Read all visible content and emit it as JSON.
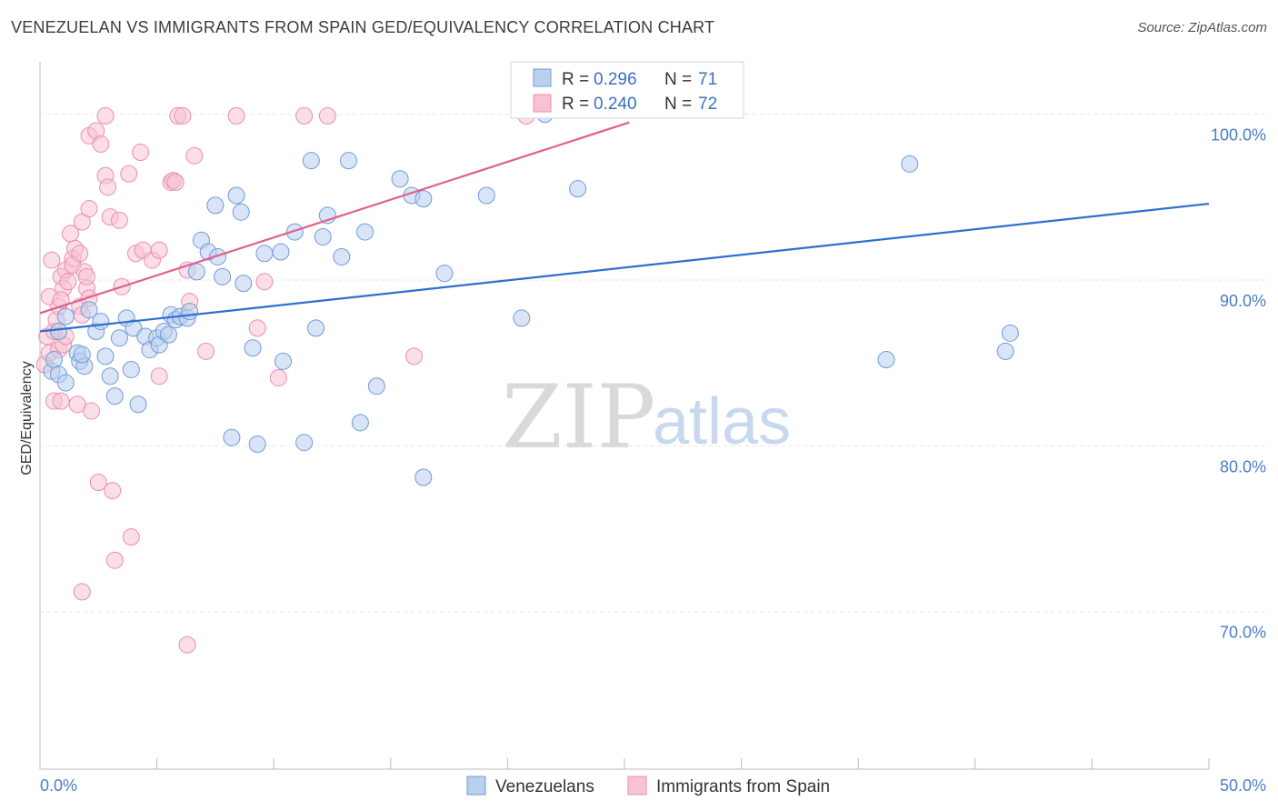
{
  "header": {
    "title": "VENEZUELAN VS IMMIGRANTS FROM SPAIN GED/EQUIVALENCY CORRELATION CHART",
    "source": "Source: ZipAtlas.com"
  },
  "watermark": {
    "zip": "ZIP",
    "atlas": "atlas"
  },
  "colors": {
    "blue_fill": "#b9d0ee",
    "blue_stroke": "#6f9bd8",
    "blue_line": "#2e6fd0",
    "pink_fill": "#f7c3d3",
    "pink_stroke": "#eb8fac",
    "pink_line": "#e0608a",
    "tick_text": "#4a7cc7"
  },
  "legend": {
    "rows": [
      {
        "r_label": "R =",
        "r_value": "0.296",
        "n_label": "N =",
        "n_value": "71"
      },
      {
        "r_label": "R =",
        "r_value": "0.240",
        "n_label": "N =",
        "n_value": "72"
      }
    ]
  },
  "bottom_legend": {
    "blue_label": "Venezuelans",
    "pink_label": "Immigrants from Spain"
  },
  "chart_data": {
    "type": "scatter",
    "title": "VENEZUELAN VS IMMIGRANTS FROM SPAIN GED/EQUIVALENCY CORRELATION CHART",
    "xlabel": "",
    "ylabel": "GED/Equivalency",
    "xlim": [
      0,
      50
    ],
    "ylim": [
      60.5,
      102.5
    ],
    "x_tick_labels": [
      "0.0%",
      "50.0%"
    ],
    "y_ticks": [
      70,
      80,
      90,
      100
    ],
    "y_tick_labels": [
      "70.0%",
      "80.0%",
      "90.0%",
      "100.0%"
    ],
    "series": [
      {
        "name": "Venezuelans",
        "color": "blue",
        "r": 0.296,
        "n": 71,
        "trend": {
          "x": [
            0,
            50
          ],
          "y": [
            86.9,
            94.6
          ]
        },
        "points": [
          [
            0.5,
            84.5
          ],
          [
            0.6,
            85.2
          ],
          [
            0.8,
            86.9
          ],
          [
            0.8,
            84.3
          ],
          [
            1.1,
            83.8
          ],
          [
            1.1,
            87.8
          ],
          [
            1.6,
            85.6
          ],
          [
            1.7,
            85.1
          ],
          [
            1.9,
            84.8
          ],
          [
            2.1,
            88.2
          ],
          [
            2.4,
            86.9
          ],
          [
            2.6,
            87.5
          ],
          [
            2.8,
            85.4
          ],
          [
            3.0,
            84.2
          ],
          [
            3.2,
            83.0
          ],
          [
            3.4,
            86.5
          ],
          [
            3.7,
            87.7
          ],
          [
            3.9,
            84.6
          ],
          [
            4.0,
            87.1
          ],
          [
            4.2,
            82.5
          ],
          [
            4.5,
            86.6
          ],
          [
            4.7,
            85.8
          ],
          [
            5.0,
            86.5
          ],
          [
            5.1,
            86.1
          ],
          [
            5.3,
            86.9
          ],
          [
            5.5,
            86.7
          ],
          [
            5.6,
            87.9
          ],
          [
            5.8,
            87.6
          ],
          [
            6.0,
            87.8
          ],
          [
            6.3,
            87.7
          ],
          [
            6.4,
            88.1
          ],
          [
            6.7,
            90.5
          ],
          [
            6.9,
            92.4
          ],
          [
            7.2,
            91.7
          ],
          [
            7.5,
            94.5
          ],
          [
            7.6,
            91.4
          ],
          [
            7.8,
            90.2
          ],
          [
            8.2,
            80.5
          ],
          [
            8.4,
            95.1
          ],
          [
            8.6,
            94.1
          ],
          [
            8.7,
            89.8
          ],
          [
            9.1,
            85.9
          ],
          [
            9.3,
            80.1
          ],
          [
            9.6,
            91.6
          ],
          [
            10.3,
            91.7
          ],
          [
            10.4,
            85.1
          ],
          [
            10.9,
            92.9
          ],
          [
            11.3,
            80.2
          ],
          [
            11.6,
            97.2
          ],
          [
            11.8,
            87.1
          ],
          [
            12.1,
            92.6
          ],
          [
            12.3,
            93.9
          ],
          [
            12.9,
            91.4
          ],
          [
            13.2,
            97.2
          ],
          [
            13.7,
            81.4
          ],
          [
            13.9,
            92.9
          ],
          [
            14.4,
            83.6
          ],
          [
            15.4,
            96.1
          ],
          [
            15.9,
            95.1
          ],
          [
            16.4,
            94.9
          ],
          [
            16.4,
            78.1
          ],
          [
            17.3,
            90.4
          ],
          [
            19.1,
            95.1
          ],
          [
            20.6,
            87.7
          ],
          [
            23.0,
            95.5
          ],
          [
            36.2,
            85.2
          ],
          [
            37.2,
            97.0
          ],
          [
            41.3,
            85.7
          ],
          [
            41.5,
            86.8
          ],
          [
            21.6,
            100.0
          ],
          [
            1.8,
            85.5
          ]
        ]
      },
      {
        "name": "Immigrants from Spain",
        "color": "pink",
        "r": 0.24,
        "n": 72,
        "trend": {
          "x": [
            0,
            25.2
          ],
          "y": [
            88.0,
            99.5
          ]
        },
        "points": [
          [
            0.2,
            84.9
          ],
          [
            0.3,
            86.6
          ],
          [
            0.4,
            85.6
          ],
          [
            0.4,
            89.0
          ],
          [
            0.5,
            91.2
          ],
          [
            0.6,
            82.7
          ],
          [
            0.6,
            86.9
          ],
          [
            0.7,
            87.6
          ],
          [
            0.8,
            85.8
          ],
          [
            0.8,
            88.4
          ],
          [
            0.9,
            82.7
          ],
          [
            0.9,
            90.2
          ],
          [
            1.0,
            86.1
          ],
          [
            1.0,
            89.5
          ],
          [
            1.1,
            90.6
          ],
          [
            1.1,
            86.6
          ],
          [
            1.3,
            92.8
          ],
          [
            1.4,
            91.3
          ],
          [
            1.4,
            90.9
          ],
          [
            1.5,
            91.9
          ],
          [
            1.6,
            82.5
          ],
          [
            1.7,
            91.6
          ],
          [
            1.7,
            88.4
          ],
          [
            1.8,
            87.9
          ],
          [
            1.8,
            93.5
          ],
          [
            1.9,
            90.5
          ],
          [
            2.0,
            89.5
          ],
          [
            2.0,
            90.2
          ],
          [
            2.1,
            88.9
          ],
          [
            2.1,
            94.3
          ],
          [
            2.1,
            98.7
          ],
          [
            2.2,
            82.1
          ],
          [
            2.4,
            99.0
          ],
          [
            2.5,
            77.8
          ],
          [
            2.6,
            98.2
          ],
          [
            2.8,
            96.3
          ],
          [
            2.8,
            99.9
          ],
          [
            2.9,
            95.6
          ],
          [
            3.0,
            93.8
          ],
          [
            3.1,
            77.3
          ],
          [
            3.2,
            73.1
          ],
          [
            3.4,
            93.6
          ],
          [
            3.5,
            89.6
          ],
          [
            3.8,
            96.4
          ],
          [
            3.9,
            74.5
          ],
          [
            4.1,
            91.6
          ],
          [
            4.3,
            97.7
          ],
          [
            4.4,
            91.8
          ],
          [
            4.8,
            91.2
          ],
          [
            5.1,
            91.8
          ],
          [
            5.1,
            84.2
          ],
          [
            5.6,
            95.9
          ],
          [
            5.7,
            96.0
          ],
          [
            5.8,
            95.9
          ],
          [
            5.9,
            99.9
          ],
          [
            6.1,
            99.9
          ],
          [
            6.3,
            90.6
          ],
          [
            6.4,
            88.7
          ],
          [
            6.6,
            97.5
          ],
          [
            7.1,
            85.7
          ],
          [
            8.4,
            99.9
          ],
          [
            9.3,
            87.1
          ],
          [
            9.6,
            89.9
          ],
          [
            10.2,
            84.1
          ],
          [
            11.3,
            99.9
          ],
          [
            12.3,
            99.9
          ],
          [
            16.0,
            85.4
          ],
          [
            1.8,
            71.2
          ],
          [
            6.3,
            68.0
          ],
          [
            20.8,
            99.9
          ],
          [
            1.2,
            89.9
          ],
          [
            0.9,
            88.8
          ]
        ]
      }
    ]
  }
}
